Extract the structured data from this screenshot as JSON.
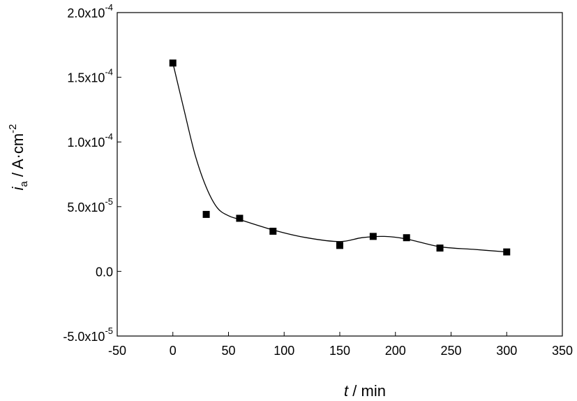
{
  "chart_data": {
    "type": "scatter",
    "title": "",
    "xlabel": {
      "var": "t",
      "unit": " / min"
    },
    "ylabel": {
      "var": "i",
      "sub": "a",
      "unit": " / A·cm",
      "sup": "-2"
    },
    "xlim": [
      -50,
      350
    ],
    "ylim": [
      -5e-05,
      0.0002
    ],
    "grid": false,
    "x_ticks": [
      -50,
      0,
      50,
      100,
      150,
      200,
      250,
      300,
      350
    ],
    "y_ticks": [
      {
        "value": -5e-05,
        "mantissa": "-5.0x10",
        "exp": "-5"
      },
      {
        "value": 0.0,
        "mantissa": "0.0",
        "exp": ""
      },
      {
        "value": 5e-05,
        "mantissa": "5.0x10",
        "exp": "-5"
      },
      {
        "value": 0.0001,
        "mantissa": "1.0x10",
        "exp": "-4"
      },
      {
        "value": 0.00015,
        "mantissa": "1.5x10",
        "exp": "-4"
      },
      {
        "value": 0.0002,
        "mantissa": "2.0x10",
        "exp": "-4"
      }
    ],
    "series": [
      {
        "marker": "square",
        "color": "#000000",
        "points": [
          {
            "x": 0,
            "y": 0.000161
          },
          {
            "x": 30,
            "y": 4.4e-05
          },
          {
            "x": 60,
            "y": 4.1e-05
          },
          {
            "x": 90,
            "y": 3.1e-05
          },
          {
            "x": 150,
            "y": 2e-05
          },
          {
            "x": 180,
            "y": 2.7e-05
          },
          {
            "x": 210,
            "y": 2.6e-05
          },
          {
            "x": 240,
            "y": 1.8e-05
          },
          {
            "x": 300,
            "y": 1.5e-05
          }
        ]
      }
    ],
    "fit_curve": {
      "color": "#000000",
      "points": [
        {
          "x": 0,
          "y": 0.000161
        },
        {
          "x": 10,
          "y": 0.000125
        },
        {
          "x": 20,
          "y": 9e-05
        },
        {
          "x": 30,
          "y": 6.5e-05
        },
        {
          "x": 40,
          "y": 4.9e-05
        },
        {
          "x": 50,
          "y": 4.3e-05
        },
        {
          "x": 60,
          "y": 4e-05
        },
        {
          "x": 90,
          "y": 3.2e-05
        },
        {
          "x": 120,
          "y": 2.6e-05
        },
        {
          "x": 150,
          "y": 2.3e-05
        },
        {
          "x": 170,
          "y": 2.6e-05
        },
        {
          "x": 190,
          "y": 2.7e-05
        },
        {
          "x": 210,
          "y": 2.5e-05
        },
        {
          "x": 240,
          "y": 1.9e-05
        },
        {
          "x": 270,
          "y": 1.7e-05
        },
        {
          "x": 300,
          "y": 1.5e-05
        }
      ]
    }
  }
}
